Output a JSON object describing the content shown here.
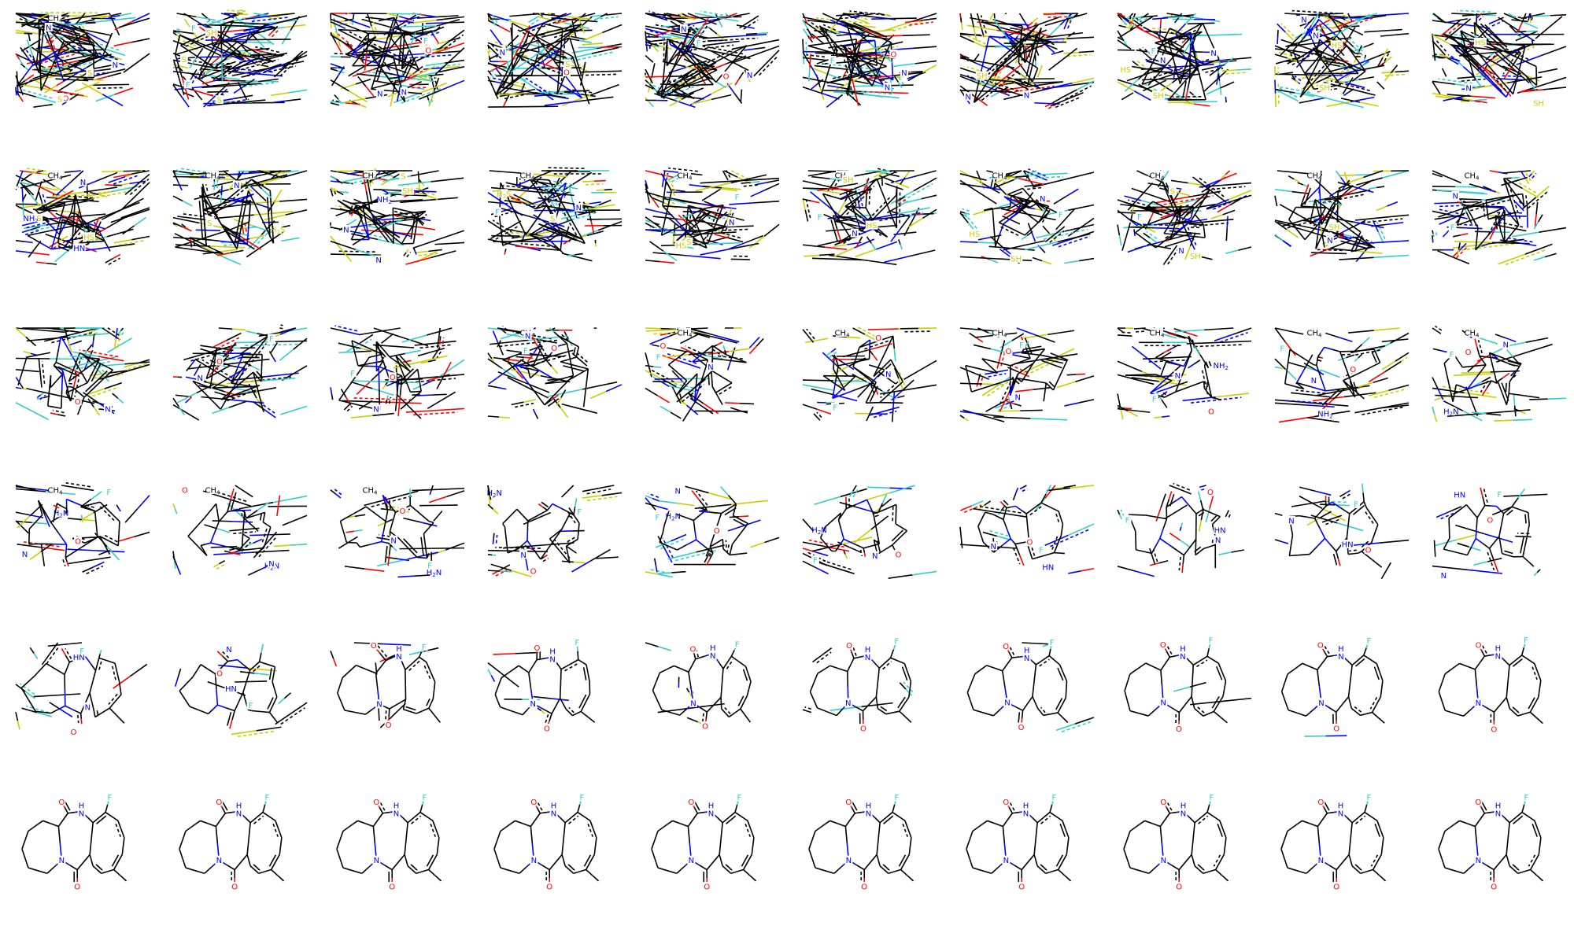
{
  "grid": {
    "rows": 6,
    "cols": 10,
    "caption": ""
  },
  "colors": {
    "C": "#000000",
    "N": "#0000ff",
    "O": "#ff0000",
    "F": "#33cccc",
    "S": "#cccc00"
  },
  "label_texts": {
    "F": "F",
    "N": "N",
    "NH": "N",
    "HN": "HN",
    "S": "S",
    "SH": "SH",
    "HS": "HS",
    "H2S": "H",
    "CH4": "CH",
    "NH2": "NH",
    "H2N": "H",
    "O": "O"
  },
  "final_molecule": {
    "description_label_set": [
      "O",
      "NH",
      "N",
      "O",
      "F"
    ],
    "final_frames_count": 10,
    "transition_frames_count": 50
  },
  "panels_labels": [
    {
      "row": 0,
      "labels": [
        [
          "CH4",
          "N",
          "O",
          "F",
          "S",
          "S",
          "N"
        ],
        [
          "F",
          "S",
          "SH",
          "S",
          "F"
        ],
        [
          "N",
          "O",
          "N",
          "F"
        ],
        [
          "N",
          "O",
          "S"
        ],
        [
          "F",
          "N",
          "O",
          "N"
        ],
        [
          "F",
          "N",
          "O",
          "N"
        ],
        [
          "SH",
          "N",
          "N"
        ],
        [
          "SH",
          "HS",
          "N",
          "F",
          "N"
        ],
        [
          "SH",
          "HS",
          "N",
          "N"
        ],
        [
          "SH",
          "HS",
          "N"
        ]
      ]
    },
    {
      "row": 1,
      "labels": [
        [
          "CH4",
          "HN",
          "HS",
          "N",
          "S",
          "NH2"
        ],
        [
          "CH4",
          "N",
          "H2S",
          "S"
        ],
        [
          "CH4",
          "NH2",
          "N",
          "SH",
          "S",
          "NH"
        ],
        [
          "CH4",
          "H2S",
          "N",
          "S",
          "F"
        ],
        [
          "CH4",
          "HS",
          "N",
          "S",
          "F"
        ],
        [
          "CH4",
          "HS",
          "N",
          "SH",
          "F"
        ],
        [
          "CH4",
          "HS",
          "N",
          "SH",
          "F"
        ],
        [
          "CH4",
          "S",
          "N",
          "SH",
          "F"
        ],
        [
          "CH4",
          "N",
          "SH"
        ],
        [
          "CH4",
          "N",
          "F"
        ]
      ]
    },
    {
      "row": 2,
      "labels": [
        [
          "N",
          "O"
        ],
        [
          "F",
          "N",
          "O"
        ],
        [
          "F",
          "N",
          "O"
        ],
        [
          "CH4",
          "N",
          "O",
          "F"
        ],
        [
          "CH4",
          "N",
          "O",
          "F"
        ],
        [
          "CH4",
          "N",
          "O",
          "F"
        ],
        [
          "CH4",
          "N",
          "O",
          "F"
        ],
        [
          "CH4",
          "NH2",
          "N",
          "O",
          "F"
        ],
        [
          "CH4",
          "NH2",
          "N",
          "O",
          "F"
        ],
        [
          "CH4",
          "H2N",
          "N",
          "O",
          "F"
        ]
      ]
    },
    {
      "row": 3,
      "labels": [
        [
          "CH4",
          "H2N",
          "F",
          "O",
          "N"
        ],
        [
          "CH4",
          "H2N",
          "F",
          "O",
          "N"
        ],
        [
          "CH4",
          "H2N",
          "F",
          "O",
          "N"
        ],
        [
          "H2N",
          "F",
          "O",
          "N"
        ],
        [
          "H2N",
          "F",
          "O",
          "N"
        ],
        [
          "H2N",
          "F",
          "O",
          "N"
        ],
        [
          "HN",
          "F",
          "O",
          "N"
        ],
        [
          "HN",
          "F",
          "O",
          "N"
        ],
        [
          "HN",
          "F",
          "O",
          "N"
        ],
        [
          "HN",
          "F",
          "O",
          "N"
        ]
      ]
    },
    {
      "row": 4,
      "labels": [
        [
          "HN",
          "F",
          "O",
          "N"
        ],
        [
          "HN",
          "F",
          "O",
          "N"
        ],
        [
          "HN",
          "F",
          "O",
          "N"
        ],
        [
          "F",
          "O",
          "N"
        ],
        [
          "F",
          "O",
          "N"
        ],
        [
          "F",
          "O",
          "N"
        ],
        [
          "F",
          "O",
          "N"
        ],
        [
          "F",
          "O",
          "N"
        ],
        [
          "F",
          "O",
          "NH",
          "N"
        ],
        [
          "F",
          "O",
          "NH",
          "N"
        ]
      ]
    },
    {
      "row": 5,
      "labels": [
        [
          "F",
          "O",
          "NH",
          "N"
        ],
        [
          "F",
          "O",
          "NH",
          "N"
        ],
        [
          "F",
          "O",
          "NH",
          "N"
        ],
        [
          "F",
          "O",
          "NH",
          "N"
        ],
        [
          "F",
          "O",
          "NH",
          "N"
        ],
        [
          "F",
          "O",
          "NH",
          "N"
        ],
        [
          "F",
          "O",
          "NH",
          "N"
        ],
        [
          "F",
          "O",
          "NH",
          "N"
        ],
        [
          "F",
          "O",
          "NH",
          "N"
        ],
        [
          "F",
          "O",
          "NH",
          "N"
        ]
      ]
    }
  ]
}
